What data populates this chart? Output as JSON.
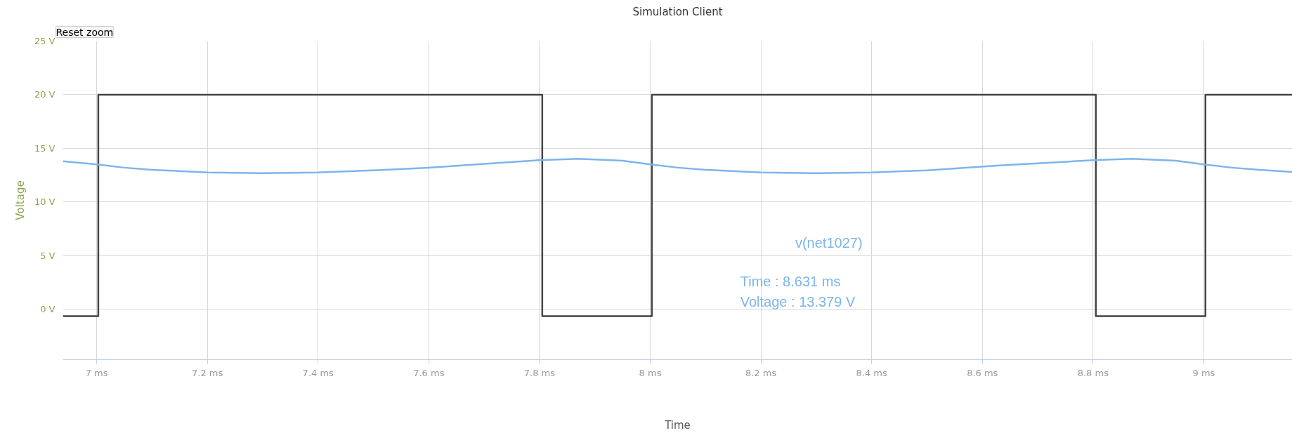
{
  "chart_data": {
    "type": "line",
    "title": "Simulation Client",
    "xlabel": "Time",
    "ylabel": "Voltage",
    "xlim": [
      6.939,
      9.16
    ],
    "ylim": [
      -4.7,
      25
    ],
    "xticks": [
      {
        "value": 7,
        "label": "7 ms"
      },
      {
        "value": 7.2,
        "label": "7.2 ms"
      },
      {
        "value": 7.4,
        "label": "7.4 ms"
      },
      {
        "value": 7.6,
        "label": "7.6 ms"
      },
      {
        "value": 7.8,
        "label": "7.8 ms"
      },
      {
        "value": 8,
        "label": "8 ms"
      },
      {
        "value": 8.2,
        "label": "8.2 ms"
      },
      {
        "value": 8.4,
        "label": "8.4 ms"
      },
      {
        "value": 8.6,
        "label": "8.6 ms"
      },
      {
        "value": 8.8,
        "label": "8.8 ms"
      },
      {
        "value": 9,
        "label": "9 ms"
      }
    ],
    "yticks": [
      {
        "value": 0,
        "label": "0 V"
      },
      {
        "value": 5,
        "label": "5 V"
      },
      {
        "value": 10,
        "label": "10 V"
      },
      {
        "value": 15,
        "label": "15 V"
      },
      {
        "value": 20,
        "label": "20 V"
      },
      {
        "value": 25,
        "label": "25 V"
      }
    ],
    "grid": true,
    "marker": "none",
    "line_style": "solid",
    "series": [
      {
        "color": "#444444",
        "x": [
          6.939,
          7.003,
          7.003,
          7.805,
          7.805,
          8.003,
          8.003,
          8.805,
          8.805,
          9.003,
          9.003,
          9.16
        ],
        "values": [
          -0.65,
          -0.65,
          20,
          20,
          -0.65,
          -0.65,
          20,
          20,
          -0.65,
          -0.65,
          20,
          20
        ]
      },
      {
        "color": "#7cb5ec",
        "x": [
          6.939,
          7.0,
          7.05,
          7.1,
          7.2,
          7.3,
          7.4,
          7.5,
          7.6,
          7.7,
          7.8,
          7.87,
          7.95,
          8.0,
          8.05,
          8.1,
          8.2,
          8.3,
          8.4,
          8.5,
          8.631,
          8.7,
          8.8,
          8.87,
          8.95,
          9.0,
          9.05,
          9.1,
          9.16
        ],
        "values": [
          13.8,
          13.5,
          13.2,
          13.0,
          12.75,
          12.68,
          12.75,
          12.95,
          13.2,
          13.55,
          13.9,
          14.03,
          13.85,
          13.5,
          13.2,
          13.0,
          12.75,
          12.68,
          12.75,
          12.95,
          13.4,
          13.6,
          13.9,
          14.03,
          13.85,
          13.5,
          13.2,
          13.0,
          12.8
        ]
      }
    ],
    "annotations": [
      "Reset zoom",
      "v(net1027)",
      "Time      : 8.631 ms",
      "Voltage : 13.379 V"
    ]
  }
}
